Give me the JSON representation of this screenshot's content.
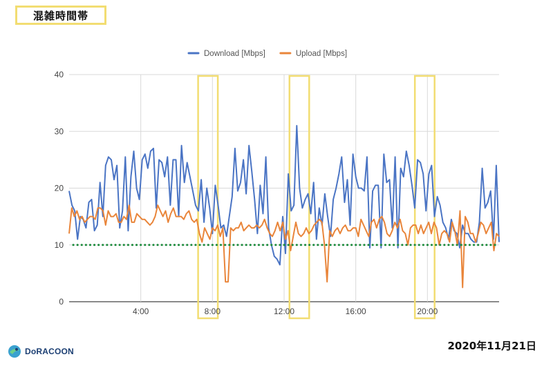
{
  "header": {
    "title": "混雑時間帯"
  },
  "footer": {
    "logo_text": "DoRACOON",
    "date": "2020年11月21日"
  },
  "colors": {
    "download": "#4a74c4",
    "upload": "#e9853a",
    "threshold": "#1a8a3a",
    "highlight": "#f2dd72",
    "grid": "#d9d9d9"
  },
  "chart_data": {
    "type": "line",
    "legend_position": "top",
    "grid": true,
    "ylim": [
      0,
      40
    ],
    "yticks": [
      0,
      10,
      20,
      30,
      40
    ],
    "xlim_hours": [
      0,
      24
    ],
    "xticks": [
      {
        "hour": 4,
        "label": "4:00"
      },
      {
        "hour": 8,
        "label": "8:00"
      },
      {
        "hour": 12,
        "label": "12:00"
      },
      {
        "hour": 16,
        "label": "16:00"
      },
      {
        "hour": 20,
        "label": "20:00"
      }
    ],
    "threshold": 10,
    "highlight_windows_hours": [
      [
        7.2,
        8.3
      ],
      [
        12.3,
        13.4
      ],
      [
        19.3,
        20.4
      ]
    ],
    "series": [
      {
        "name": "Download [Mbps]",
        "color": "#4a74c4",
        "values": [
          19.5,
          17,
          16,
          11,
          15,
          14.5,
          13,
          17.5,
          18,
          12.5,
          13.5,
          21,
          15,
          24,
          25.5,
          25,
          21.5,
          24,
          13,
          16,
          25.5,
          12.5,
          22,
          26.5,
          20,
          18,
          25,
          26,
          23.5,
          26.5,
          27,
          16.5,
          25,
          24.5,
          22,
          25.5,
          17,
          25,
          25,
          15,
          27.5,
          21,
          24.5,
          22,
          19.5,
          17,
          16,
          21.5,
          14,
          20,
          16.5,
          12,
          20.5,
          17,
          13,
          13.5,
          11.5,
          15,
          18.5,
          27,
          19.5,
          21,
          25,
          19,
          27.5,
          23,
          18,
          12,
          20.5,
          15.5,
          25.5,
          13,
          10,
          8,
          7.5,
          6.5,
          15,
          8.5,
          22.5,
          16,
          17,
          31,
          20,
          16.5,
          18,
          19,
          15.5,
          21,
          11,
          16.5,
          13.5,
          19,
          15,
          11.5,
          18,
          20,
          22.5,
          25.5,
          17.5,
          21.5,
          13.5,
          26,
          22,
          20,
          20,
          19.5,
          25.5,
          9.5,
          19.5,
          20.5,
          20.5,
          9.5,
          26,
          21,
          21.5,
          13,
          25.5,
          9.5,
          23.5,
          22,
          26.5,
          24,
          20.5,
          16.5,
          25,
          24.5,
          22.5,
          16,
          22.5,
          24,
          15,
          18.5,
          17,
          14,
          13,
          11,
          14.5,
          12.5,
          12,
          9.5,
          13.5,
          12,
          12,
          11,
          10.5,
          10.5,
          14,
          23.5,
          16.5,
          17.5,
          19.5,
          11,
          24,
          10.5
        ],
        "peak_label": "31"
      },
      {
        "name": "Upload [Mbps]",
        "color": "#e9853a",
        "values": [
          12,
          16.5,
          15,
          16,
          14.5,
          15,
          14,
          14.5,
          15,
          15,
          14.5,
          16.5,
          16.5,
          16,
          13.5,
          16,
          15,
          15,
          15.5,
          14,
          14,
          15,
          14.5,
          17,
          14,
          14,
          15.5,
          15,
          14.5,
          14.5,
          14,
          13.5,
          14,
          15,
          17,
          16,
          15,
          16,
          14,
          15.5,
          16.5,
          15,
          15,
          15,
          14.5,
          15.5,
          16,
          14.5,
          14,
          14.5,
          12,
          10.5,
          13,
          12,
          11,
          13,
          12.5,
          13.5,
          11.5,
          13,
          3.5,
          3.5,
          13,
          12.5,
          13,
          13,
          14,
          12.5,
          13,
          13.5,
          13,
          13,
          13.5,
          13,
          13.5,
          14.5,
          13,
          12,
          11.5,
          12.5,
          14,
          12.5,
          14,
          11,
          12.5,
          9,
          11.5,
          14,
          12,
          11.5,
          12,
          13,
          12,
          12.5,
          13.5,
          14,
          14.5,
          14,
          10,
          3.5,
          12.5,
          11.5,
          12.5,
          13,
          12,
          13,
          13.5,
          12.5,
          12.5,
          13,
          13,
          11.5,
          14.5,
          13.5,
          12.5,
          11.5,
          14,
          14.5,
          13,
          14.5,
          15,
          14,
          12,
          11.5,
          12.5,
          14,
          13,
          14.5,
          12.5,
          12,
          10,
          13,
          13.5,
          13.5,
          12,
          13.5,
          12,
          13,
          14,
          12,
          14,
          13,
          10,
          12,
          12.5,
          12,
          10.5,
          14,
          12.5,
          10,
          16,
          2.5,
          15,
          14,
          12,
          12,
          10.5,
          12,
          14,
          13.5,
          12,
          13,
          14,
          9,
          12,
          11.5
        ],
        "min_label": "2.5"
      }
    ]
  }
}
